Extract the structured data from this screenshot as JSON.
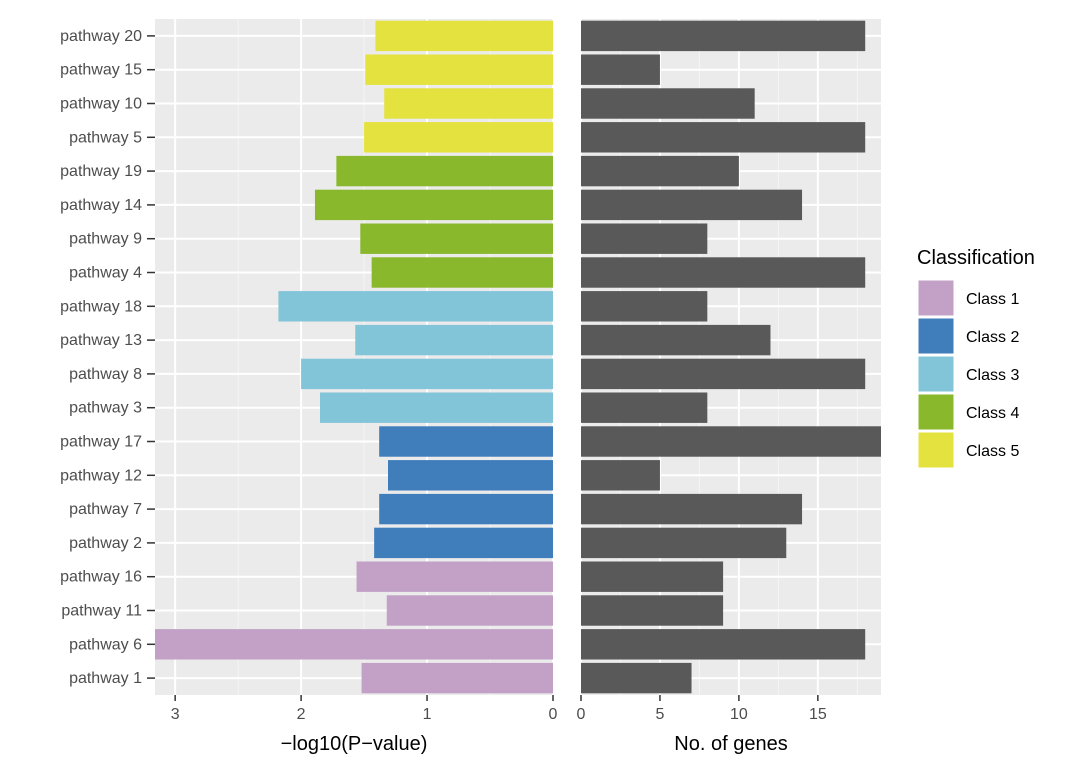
{
  "chart_data": {
    "type": "bar",
    "orientation": "horizontal",
    "categories": [
      "pathway 20",
      "pathway 15",
      "pathway 10",
      "pathway 5",
      "pathway 19",
      "pathway 14",
      "pathway 9",
      "pathway 4",
      "pathway 18",
      "pathway 13",
      "pathway 8",
      "pathway 3",
      "pathway 17",
      "pathway 12",
      "pathway 7",
      "pathway 2",
      "pathway 16",
      "pathway 11",
      "pathway 6",
      "pathway 1"
    ],
    "panels": [
      {
        "name": "pvalue",
        "xlabel": "−log10(P−value)",
        "xlim": [
          3.16,
          0
        ],
        "ticks": [
          3,
          2,
          1,
          0
        ],
        "tick_labels": [
          "3",
          "2",
          "1",
          "0"
        ],
        "values": [
          1.41,
          1.49,
          1.34,
          1.5,
          1.72,
          1.89,
          1.53,
          1.44,
          2.18,
          1.57,
          2.0,
          1.85,
          1.38,
          1.31,
          1.38,
          1.42,
          1.56,
          1.32,
          3.16,
          1.52
        ],
        "class_index": [
          4,
          4,
          4,
          4,
          3,
          3,
          3,
          3,
          2,
          2,
          2,
          2,
          1,
          1,
          1,
          1,
          0,
          0,
          0,
          0
        ]
      },
      {
        "name": "genes",
        "xlabel": "No. of genes",
        "xlim": [
          0,
          19
        ],
        "ticks": [
          0,
          5,
          10,
          15
        ],
        "tick_labels": [
          "0",
          "5",
          "10",
          "15"
        ],
        "values": [
          18,
          5,
          11,
          18,
          10,
          14,
          8,
          18,
          8,
          12,
          18,
          8,
          19,
          5,
          14,
          13,
          9,
          9,
          18,
          7
        ],
        "color": "#595959"
      }
    ],
    "legend": {
      "title": "Classification",
      "position": "right",
      "entries": [
        {
          "label": "Class 1",
          "color": "#c3a1c7"
        },
        {
          "label": "Class 2",
          "color": "#3f7dbb"
        },
        {
          "label": "Class 3",
          "color": "#82c4d8"
        },
        {
          "label": "Class 4",
          "color": "#8ab82d"
        },
        {
          "label": "Class 5",
          "color": "#e4e23f"
        }
      ]
    },
    "grid": true,
    "panel_background": "#ebebeb"
  }
}
